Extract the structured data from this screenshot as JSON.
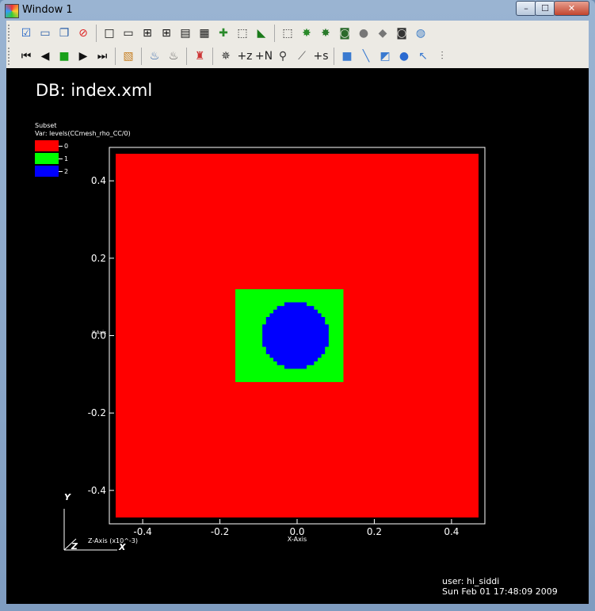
{
  "window": {
    "title": "Window 1",
    "minimize": "–",
    "maximize": "☐",
    "close": "✕"
  },
  "toolbar1": [
    {
      "name": "apply-icon",
      "glyph": "☑",
      "color": "#1a5fc4"
    },
    {
      "name": "new-window-icon",
      "glyph": "▭",
      "color": "#2a5fa8"
    },
    {
      "name": "clone-window-icon",
      "glyph": "❐",
      "color": "#2a5fa8"
    },
    {
      "name": "delete-window-icon",
      "glyph": "⊘",
      "color": "#d22"
    },
    {
      "name": "layout-1x1-icon",
      "glyph": "□",
      "color": "#111"
    },
    {
      "name": "layout-1x2-icon",
      "glyph": "▭",
      "color": "#111"
    },
    {
      "name": "layout-2x2-icon",
      "glyph": "⊞",
      "color": "#111"
    },
    {
      "name": "layout-2x3-icon",
      "glyph": "⊞",
      "color": "#111"
    },
    {
      "name": "layout-2x4-icon",
      "glyph": "▤",
      "color": "#111"
    },
    {
      "name": "layout-3x3-icon",
      "glyph": "▦",
      "color": "#111"
    },
    {
      "name": "pick-icon",
      "glyph": "✚",
      "color": "#2a8a2a"
    },
    {
      "name": "box-icon",
      "glyph": "⬚",
      "color": "#222"
    },
    {
      "name": "lineout-icon",
      "glyph": "◣",
      "color": "#1a7a1a"
    },
    {
      "name": "view-box-icon",
      "glyph": "⬚",
      "color": "#222"
    },
    {
      "name": "spin-green-icon",
      "glyph": "✸",
      "color": "#2a8a2a"
    },
    {
      "name": "spin-2-icon",
      "glyph": "✸",
      "color": "#2a7a2a"
    },
    {
      "name": "camera-icon",
      "glyph": "◙",
      "color": "#2a6a2a"
    },
    {
      "name": "blob-icon",
      "glyph": "●",
      "color": "#777"
    },
    {
      "name": "folder-icon",
      "glyph": "◆",
      "color": "#777"
    },
    {
      "name": "save-image-icon",
      "glyph": "◙",
      "color": "#333"
    },
    {
      "name": "globe-icon",
      "glyph": "◍",
      "color": "#3a7ac4"
    }
  ],
  "toolbar2": [
    {
      "name": "first-frame-icon",
      "glyph": "⏮",
      "color": "#111"
    },
    {
      "name": "prev-frame-icon",
      "glyph": "◀",
      "color": "#111"
    },
    {
      "name": "stop-icon",
      "glyph": "■",
      "color": "#19a019"
    },
    {
      "name": "play-icon",
      "glyph": "▶",
      "color": "#111"
    },
    {
      "name": "last-frame-icon",
      "glyph": "⏭",
      "color": "#111"
    },
    {
      "name": "palette-icon",
      "glyph": "▧",
      "color": "#c67d1e"
    },
    {
      "name": "lock-view-icon",
      "glyph": "♨",
      "color": "#2a5fa8"
    },
    {
      "name": "lock-time-icon",
      "glyph": "♨",
      "color": "#555"
    },
    {
      "name": "lock-tools-icon",
      "glyph": "♜",
      "color": "#c33"
    },
    {
      "name": "navigate-icon",
      "glyph": "✵",
      "color": "#333"
    },
    {
      "name": "zoom-z-icon",
      "glyph": "+z",
      "color": "#222"
    },
    {
      "name": "zoom-n-icon",
      "glyph": "+N",
      "color": "#222"
    },
    {
      "name": "zoom-icon",
      "glyph": "⚲",
      "color": "#333"
    },
    {
      "name": "curve-icon",
      "glyph": "⟋",
      "color": "#555"
    },
    {
      "name": "zoom-s-icon",
      "glyph": "+s",
      "color": "#222"
    },
    {
      "name": "cube-icon",
      "glyph": "■",
      "color": "#3a7ad0"
    },
    {
      "name": "line-icon",
      "glyph": "╲",
      "color": "#3a7ad0"
    },
    {
      "name": "plane-icon",
      "glyph": "◩",
      "color": "#3a7ad0"
    },
    {
      "name": "sphere-icon",
      "glyph": "●",
      "color": "#2a6ad0"
    },
    {
      "name": "point-icon",
      "glyph": "↖",
      "color": "#3a7ad0"
    },
    {
      "name": "axis-icon",
      "glyph": "⫶",
      "color": "#555"
    }
  ],
  "canvas": {
    "db_label": "DB: index.xml",
    "legend": {
      "title": "Subset",
      "variable": "Var: levels(CCmesh_rho_CC/0)",
      "entries": [
        {
          "label": "0",
          "color": "#ff0000"
        },
        {
          "label": "1",
          "color": "#00ff00"
        },
        {
          "label": "2",
          "color": "#0000ff"
        }
      ]
    },
    "user_label": "user: hi_siddi",
    "date_label": "Sun Feb 01 17:48:09 2009"
  },
  "chart_data": {
    "type": "heatmap",
    "title": "DB: index.xml",
    "xlabel": "X-Axis",
    "ylabel": "Y-Axis",
    "zlabel": "Z-Axis (x10^-3)",
    "xlim": [
      -0.47,
      0.47
    ],
    "ylim": [
      -0.47,
      0.47
    ],
    "xticks": [
      -0.4,
      -0.2,
      0.0,
      0.2,
      0.4
    ],
    "yticks": [
      -0.4,
      -0.2,
      0.0,
      0.2,
      0.4
    ],
    "xtick_labels": [
      "-0.4",
      "-0.2",
      "0.0",
      "0.2",
      "0.4"
    ],
    "ytick_labels": [
      "-0.4",
      "-0.2",
      "0.0",
      "0.2",
      "0.4"
    ],
    "triad_labels": [
      "Y",
      "Z",
      "X"
    ],
    "regions": [
      {
        "level": 0,
        "color": "#ff0000",
        "shape": "rect",
        "x": [
          -0.47,
          0.47
        ],
        "y": [
          -0.47,
          0.47
        ]
      },
      {
        "level": 1,
        "color": "#00ff00",
        "shape": "rect",
        "x": [
          -0.16,
          0.12
        ],
        "y": [
          -0.12,
          0.12
        ]
      },
      {
        "level": 2,
        "color": "#0000ff",
        "shape": "disk",
        "center": [
          -0.005,
          0.0
        ],
        "radius": 0.085
      }
    ]
  }
}
